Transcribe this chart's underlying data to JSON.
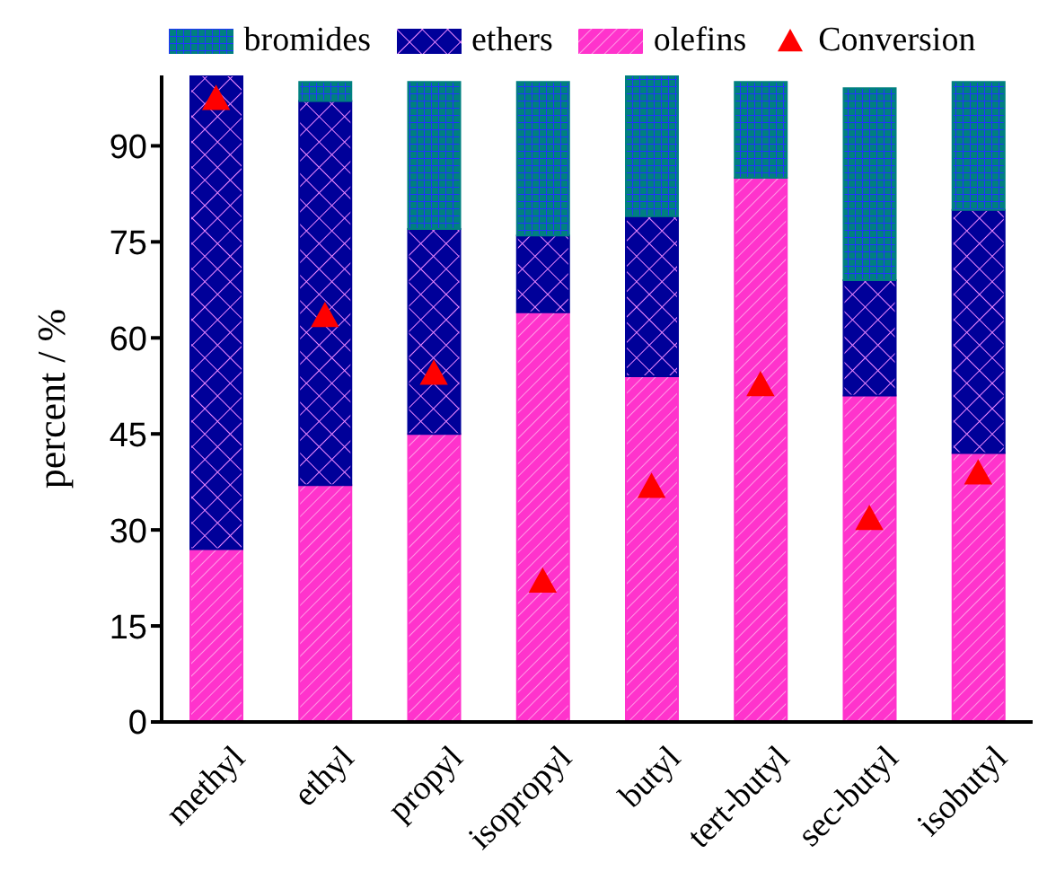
{
  "chart_data": {
    "type": "bar",
    "stacked": true,
    "ylabel": "percent / %",
    "legend": "top",
    "ylim": [
      0,
      101
    ],
    "yticks": [
      0,
      15,
      30,
      45,
      60,
      75,
      90
    ],
    "categories": [
      "methyl",
      "ethyl",
      "propyl",
      "isopropyl",
      "butyl",
      "tert-butyl",
      "sec-butyl",
      "isobutyl"
    ],
    "series": [
      {
        "name": "olefins",
        "color": "#ff33cc",
        "values": [
          27,
          37,
          45,
          64,
          54,
          85,
          51,
          42
        ]
      },
      {
        "name": "ethers",
        "color": "#000099",
        "values": [
          74,
          60,
          32,
          12,
          25,
          0,
          18,
          38
        ]
      },
      {
        "name": "bromides",
        "color": "#008080",
        "values": [
          0,
          3,
          23,
          24,
          22,
          15,
          30,
          20
        ]
      },
      {
        "name": "Conversion",
        "type": "scatter",
        "marker": "triangle",
        "color": "#ff0000",
        "x": [
          "methyl",
          "ethyl",
          "propyl",
          "isopropyl",
          "butyl",
          "tert-butyl",
          "sec-butyl",
          "isobutyl"
        ],
        "values": [
          97.3,
          63.4,
          54.4,
          21.9,
          36.7,
          52.6,
          31.7,
          38.8
        ]
      }
    ]
  }
}
